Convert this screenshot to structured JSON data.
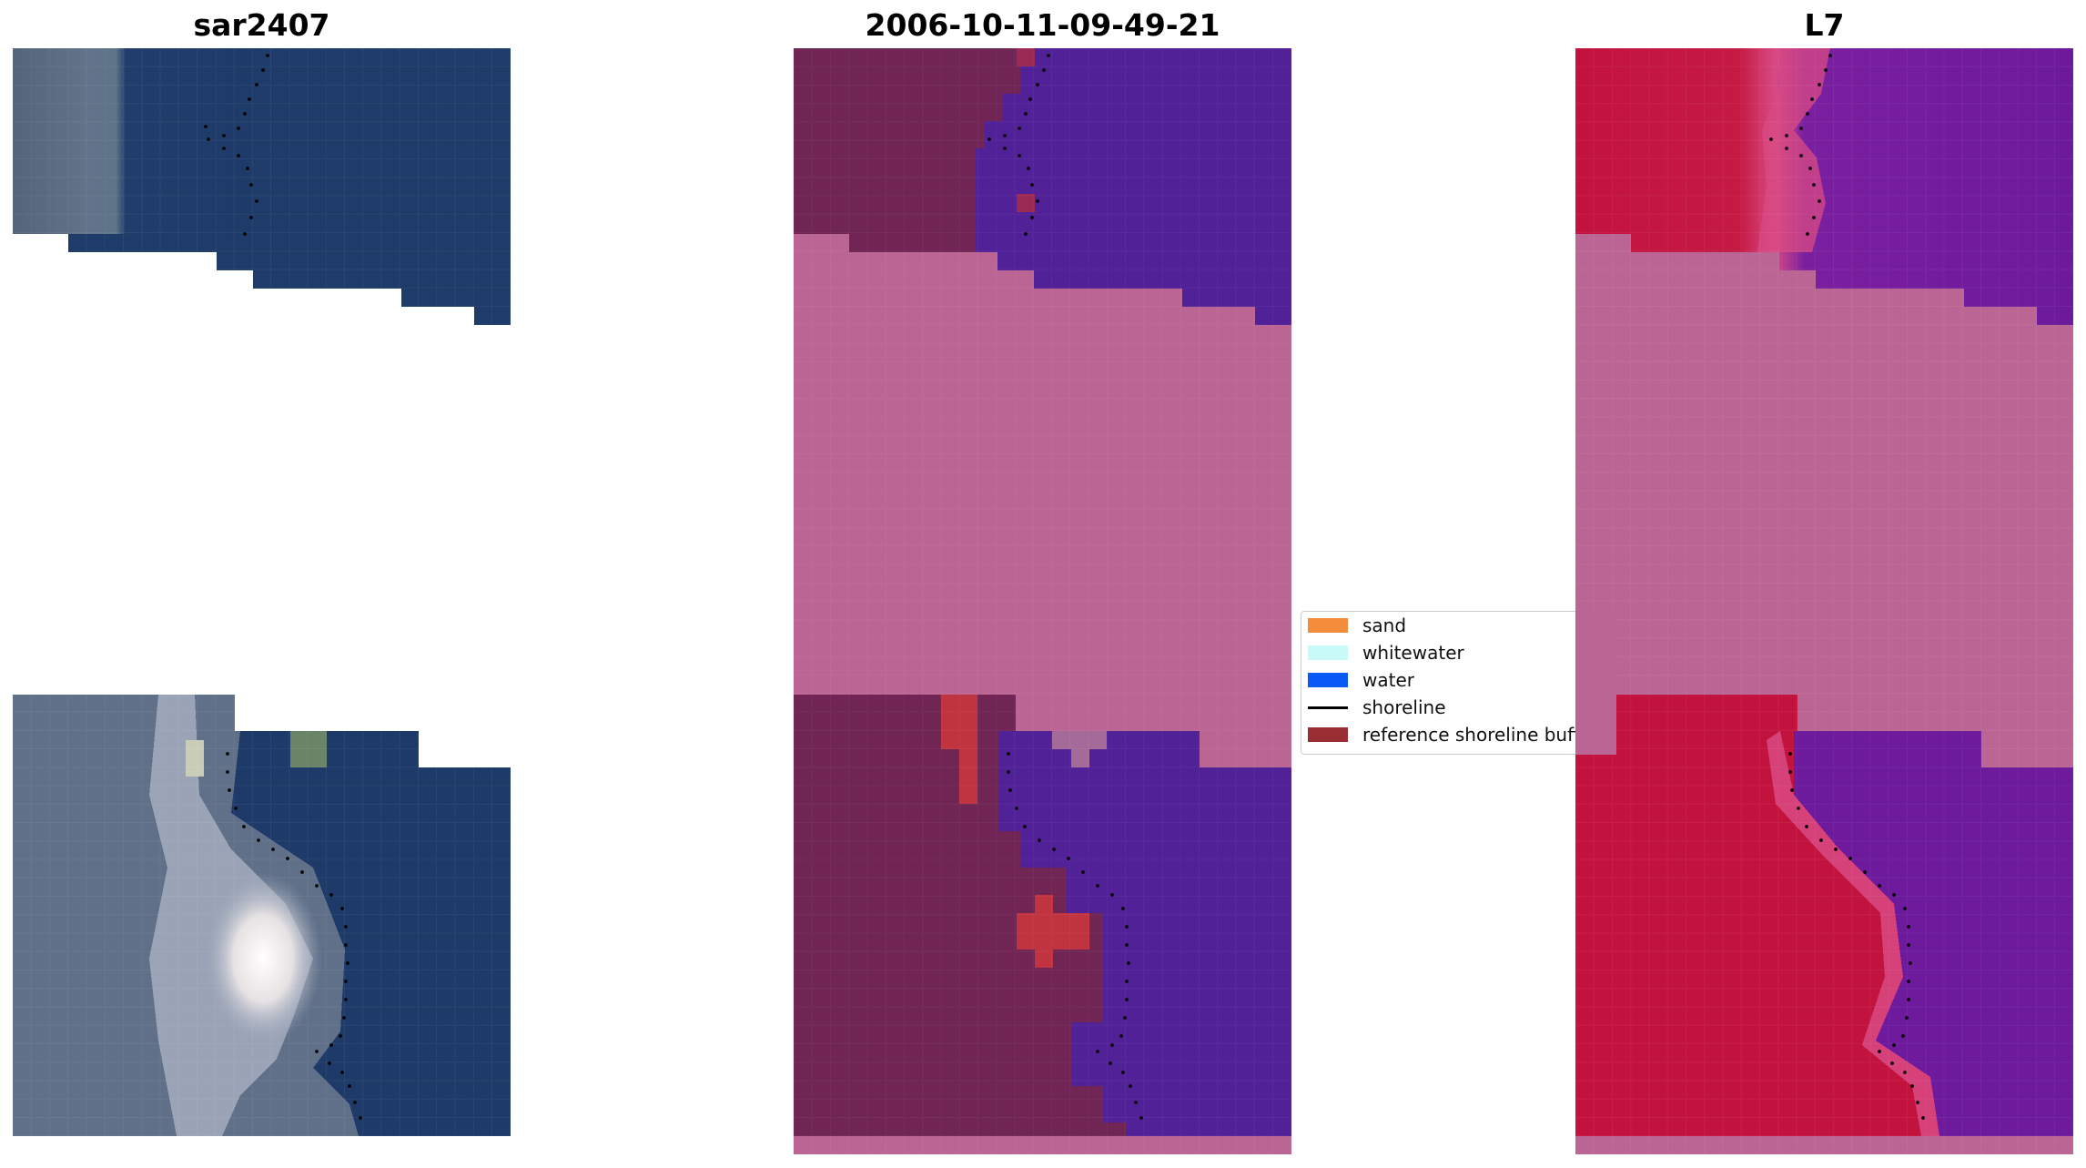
{
  "panels": [
    {
      "title": "sar2407"
    },
    {
      "title": "2006-10-11-09-49-21"
    },
    {
      "title": "L7"
    }
  ],
  "legend": {
    "items": [
      {
        "label": "sand",
        "color": "#f58c3c",
        "kind": "patch"
      },
      {
        "label": "whitewater",
        "color": "#c8fafa",
        "kind": "patch"
      },
      {
        "label": "water",
        "color": "#0a5af5",
        "kind": "patch"
      },
      {
        "label": "shoreline",
        "color": "#000000",
        "kind": "line"
      },
      {
        "label": "reference shoreline buffer",
        "color": "#9b2d35",
        "kind": "patch"
      }
    ]
  },
  "colors": {
    "rgb_land": "#5b6e83",
    "rgb_water": "#1c3a6a",
    "rgb_foam": "#f5f5ef",
    "class_land": "#702555",
    "class_water": "#512198",
    "class_buffer": "#c0343f",
    "nodata": "#bb6594",
    "ndwi_land": "#c2133e",
    "ndwi_water": "#6d1a9c",
    "ndwi_edge": "#d84a83"
  }
}
